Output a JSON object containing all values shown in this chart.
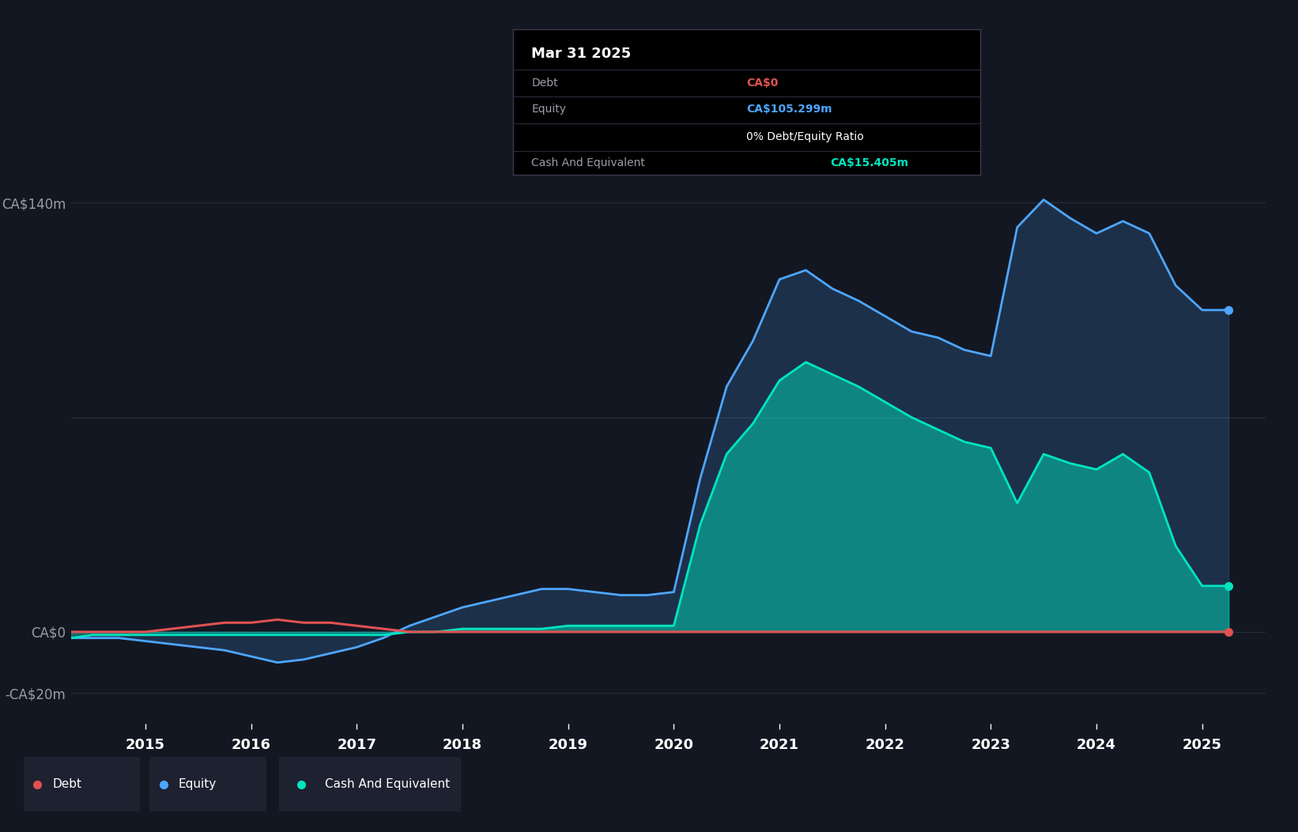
{
  "background_color": "#131722",
  "plot_bg_color": "#131722",
  "grid_color": "#2a2e39",
  "text_color": "#9b9ea8",
  "title_text": "Mar 31 2025",
  "debt_color": "#e05252",
  "equity_color": "#4da6ff",
  "cash_color": "#00e5c0",
  "ylim_min": -30,
  "ylim_max": 160,
  "xlim_min": 2014.3,
  "xlim_max": 2025.6,
  "xticks": [
    2015,
    2016,
    2017,
    2018,
    2019,
    2020,
    2021,
    2022,
    2023,
    2024,
    2025
  ],
  "ytick_positions": [
    140,
    0,
    -20
  ],
  "ytick_labels": [
    "CA$140m",
    "CA$0",
    "-CA$20m"
  ],
  "years": [
    2014.3,
    2014.5,
    2014.75,
    2015.0,
    2015.25,
    2015.5,
    2015.75,
    2016.0,
    2016.25,
    2016.5,
    2016.75,
    2017.0,
    2017.25,
    2017.5,
    2017.75,
    2018.0,
    2018.25,
    2018.5,
    2018.75,
    2019.0,
    2019.25,
    2019.5,
    2019.75,
    2020.0,
    2020.25,
    2020.5,
    2020.75,
    2021.0,
    2021.25,
    2021.5,
    2021.75,
    2022.0,
    2022.25,
    2022.5,
    2022.75,
    2023.0,
    2023.25,
    2023.5,
    2023.75,
    2024.0,
    2024.25,
    2024.5,
    2024.75,
    2025.0,
    2025.25
  ],
  "equity": [
    -2,
    -2,
    -2,
    -3,
    -4,
    -5,
    -6,
    -8,
    -10,
    -9,
    -7,
    -5,
    -2,
    2,
    5,
    8,
    10,
    12,
    14,
    14,
    13,
    12,
    12,
    13,
    50,
    80,
    95,
    115,
    118,
    112,
    108,
    103,
    98,
    96,
    92,
    90,
    132,
    141,
    135,
    130,
    134,
    130,
    113,
    105,
    105
  ],
  "cash": [
    -2,
    -1,
    -1,
    -1,
    -1,
    -1,
    -1,
    -1,
    -1,
    -1,
    -1,
    -1,
    -1,
    0,
    0,
    1,
    1,
    1,
    1,
    2,
    2,
    2,
    2,
    2,
    35,
    58,
    68,
    82,
    88,
    84,
    80,
    75,
    70,
    66,
    62,
    60,
    42,
    58,
    55,
    53,
    58,
    52,
    28,
    15,
    15
  ],
  "debt": [
    0,
    0,
    0,
    0,
    1,
    2,
    3,
    3,
    4,
    3,
    3,
    2,
    1,
    0,
    0,
    0,
    0,
    0,
    0,
    0,
    0,
    0,
    0,
    0,
    0,
    0,
    0,
    0,
    0,
    0,
    0,
    0,
    0,
    0,
    0,
    0,
    0,
    0,
    0,
    0,
    0,
    0,
    0,
    0,
    0
  ]
}
